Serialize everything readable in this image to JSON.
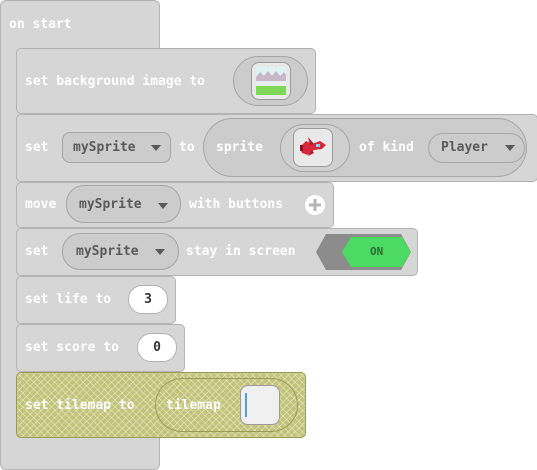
{
  "hat": {
    "label": "on start"
  },
  "blocks": {
    "background": {
      "label": "set background image to",
      "icon": "background-image-thumbnail"
    },
    "sprite": {
      "set_label": "set",
      "variable": "mySprite",
      "to_label": "to",
      "sprite_label": "sprite",
      "icon": "red-airplane-sprite",
      "kind_label": "of kind",
      "kind_value": "Player"
    },
    "move": {
      "label": "move",
      "variable": "mySprite",
      "with_label": "with buttons",
      "icon": "plus-circle-icon"
    },
    "stay": {
      "set_label": "set",
      "variable": "mySprite",
      "stay_label": "stay in screen",
      "toggle_value": "ON"
    },
    "life": {
      "label": "set life to",
      "value": "3"
    },
    "score": {
      "label": "set score to",
      "value": "0"
    },
    "tilemap": {
      "label": "set tilemap to",
      "inner_label": "tilemap"
    }
  },
  "colors": {
    "block": "#d6d6d6",
    "tilemap_block": "#c3c37a",
    "toggle_on": "#4cd964"
  }
}
